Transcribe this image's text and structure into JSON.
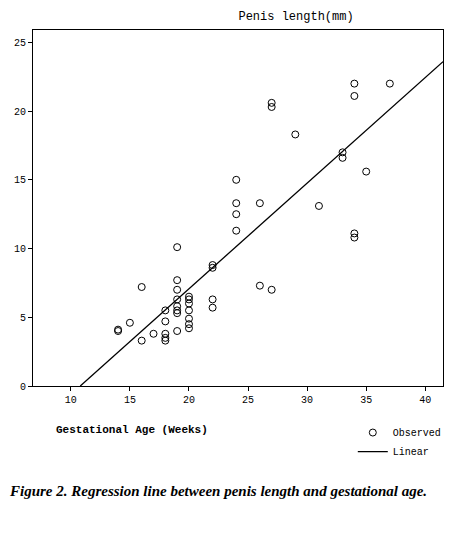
{
  "chart_data": {
    "type": "scatter",
    "title": "Penis length(mm)",
    "x_label": "Gestational Age (Weeks)",
    "caption": "Figure 2. Regression line between penis length and gestational age.",
    "xlim": [
      6.8,
      41.5
    ],
    "ylim": [
      0,
      25.9
    ],
    "xticks": [
      10,
      15,
      20,
      25,
      30,
      35,
      40
    ],
    "yticks": [
      0,
      5,
      10,
      15,
      20,
      25
    ],
    "grid": false,
    "legend": "bottom right",
    "series": [
      {
        "name": "Observed",
        "type": "scatter",
        "marker": "open circle",
        "color": "#000000",
        "x": [
          14,
          14,
          15,
          16,
          16,
          17,
          18,
          18,
          18,
          18,
          18,
          19,
          19,
          19,
          19,
          19,
          19,
          19,
          19,
          20,
          20,
          20,
          20,
          20,
          20,
          20,
          22,
          22,
          22,
          22,
          24,
          24,
          24,
          24,
          26,
          26,
          27,
          27,
          27,
          29,
          31,
          33,
          33,
          34,
          34,
          34,
          34,
          35,
          37
        ],
        "values": [
          4.1,
          4.0,
          4.6,
          7.2,
          3.3,
          3.8,
          5.5,
          4.7,
          3.8,
          3.5,
          3.3,
          10.1,
          7.7,
          7.0,
          6.3,
          5.8,
          5.5,
          5.3,
          4.0,
          6.5,
          6.3,
          6.0,
          5.5,
          4.9,
          4.5,
          4.2,
          8.8,
          8.6,
          6.3,
          5.7,
          15.0,
          13.3,
          12.5,
          11.3,
          13.3,
          7.3,
          20.6,
          20.3,
          7.0,
          18.3,
          13.1,
          17.0,
          16.6,
          22.0,
          21.1,
          11.1,
          10.8,
          15.6,
          22.0
        ]
      },
      {
        "name": "Linear",
        "type": "line",
        "line_style": "solid",
        "color": "#000000",
        "x": [
          10.8,
          41.5
        ],
        "values": [
          0,
          23.6
        ]
      }
    ]
  }
}
